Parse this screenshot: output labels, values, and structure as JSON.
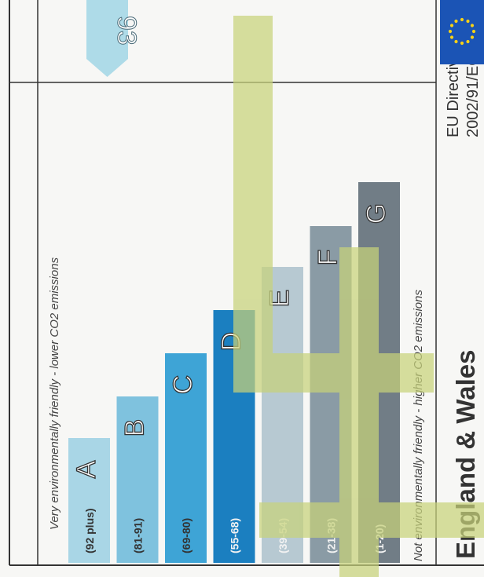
{
  "header_top": "Very environmentally friendly - lower CO2 emissions",
  "header_bottom": "Not environmentally friendly - higher CO2 emissions",
  "region": "England & Wales",
  "directive": {
    "line1": "EU Directive",
    "line2": "2002/91/EC"
  },
  "current_rating": "93",
  "bands": [
    {
      "letter": "A",
      "range": "(92 plus)",
      "color": "#a9d6e6"
    },
    {
      "letter": "B",
      "range": "(81-91)",
      "color": "#7fc2de"
    },
    {
      "letter": "C",
      "range": "(69-80)",
      "color": "#3ea4d6"
    },
    {
      "letter": "D",
      "range": "(55-68)",
      "color": "#1b7fc0"
    },
    {
      "letter": "E",
      "range": "(39-54)",
      "color": "#b7c9d2"
    },
    {
      "letter": "F",
      "range": "(21-38)",
      "color": "#8a9ba5"
    },
    {
      "letter": "G",
      "range": "(1-20)",
      "color": "#717d86"
    }
  ],
  "colors": {
    "watermark": "#c7d27a",
    "eu_flag": "#1b54b5",
    "arrow": "#aedbe8"
  }
}
